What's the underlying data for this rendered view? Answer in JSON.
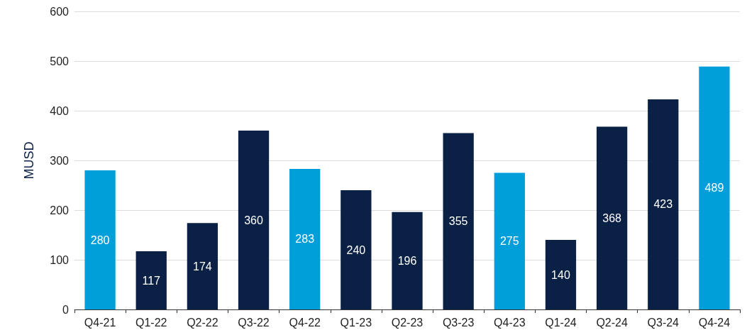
{
  "chart_data": {
    "type": "bar",
    "ylabel": "MUSD",
    "categories": [
      "Q4-21",
      "Q1-22",
      "Q2-22",
      "Q3-22",
      "Q4-22",
      "Q1-23",
      "Q2-23",
      "Q3-23",
      "Q4-23",
      "Q1-24",
      "Q2-24",
      "Q3-24",
      "Q4-24"
    ],
    "values": [
      280,
      117,
      174,
      360,
      283,
      240,
      196,
      355,
      275,
      140,
      368,
      423,
      489
    ],
    "colors": [
      "#009fd9",
      "#0b2045",
      "#0b2045",
      "#0b2045",
      "#009fd9",
      "#0b2045",
      "#0b2045",
      "#0b2045",
      "#009fd9",
      "#0b2045",
      "#0b2045",
      "#0b2045",
      "#009fd9"
    ],
    "ylim": [
      0,
      600
    ],
    "yticks": [
      0,
      100,
      200,
      300,
      400,
      500,
      600
    ],
    "grid": "y",
    "data_labels": true
  }
}
